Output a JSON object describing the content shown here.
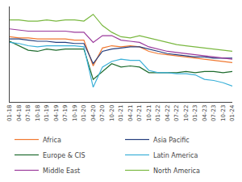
{
  "chart_data": {
    "type": "line",
    "categories": [
      "01-18",
      "04-18",
      "07-18",
      "10-18",
      "01-19",
      "04-19",
      "07-19",
      "10-19",
      "01-20",
      "04-20",
      "07-20",
      "10-20",
      "01-21",
      "04-21",
      "07-21",
      "10-21",
      "01-22",
      "04-22",
      "07-22",
      "10-22",
      "01-23",
      "04-23",
      "07-23",
      "10-23",
      "01-24"
    ],
    "series": [
      {
        "name": "Africa",
        "color": "#f07830",
        "values": [
          78,
          77,
          77,
          76,
          76,
          76,
          76,
          75,
          75,
          52,
          68,
          70,
          69,
          70,
          69,
          65,
          63,
          62,
          61,
          60,
          59,
          58,
          57,
          56,
          55
        ]
      },
      {
        "name": "Asia Pacific",
        "color": "#253e7e",
        "values": [
          76,
          76,
          75,
          74,
          74,
          73,
          73,
          72,
          72,
          54,
          65,
          67,
          68,
          69,
          69,
          67,
          65,
          63,
          62,
          61,
          60,
          60,
          59,
          59,
          59
        ]
      },
      {
        "name": "Europe & CIS",
        "color": "#1e6b2e",
        "values": [
          74,
          70,
          66,
          65,
          67,
          66,
          67,
          67,
          67,
          40,
          47,
          54,
          51,
          52,
          51,
          46,
          46,
          46,
          46,
          47,
          46,
          47,
          47,
          46,
          47
        ]
      },
      {
        "name": "Latin America",
        "color": "#3ab0d8",
        "values": [
          73,
          72,
          70,
          69,
          70,
          70,
          70,
          70,
          69,
          33,
          51,
          56,
          58,
          57,
          57,
          48,
          46,
          46,
          45,
          45,
          44,
          40,
          39,
          37,
          34
        ]
      },
      {
        "name": "Middle East",
        "color": "#9b3a9b",
        "values": [
          85,
          84,
          83,
          83,
          83,
          83,
          83,
          82,
          82,
          73,
          79,
          79,
          75,
          74,
          73,
          69,
          67,
          65,
          64,
          63,
          62,
          61,
          60,
          59,
          58
        ]
      },
      {
        "name": "North America",
        "color": "#7ab840",
        "values": [
          93,
          93,
          92,
          92,
          93,
          92,
          93,
          93,
          92,
          98,
          88,
          82,
          78,
          77,
          79,
          77,
          75,
          73,
          71,
          70,
          69,
          68,
          67,
          66,
          65
        ]
      }
    ],
    "ylim": [
      20,
      105
    ],
    "tick_labels": "x",
    "grid": false,
    "legend": "bottom"
  }
}
